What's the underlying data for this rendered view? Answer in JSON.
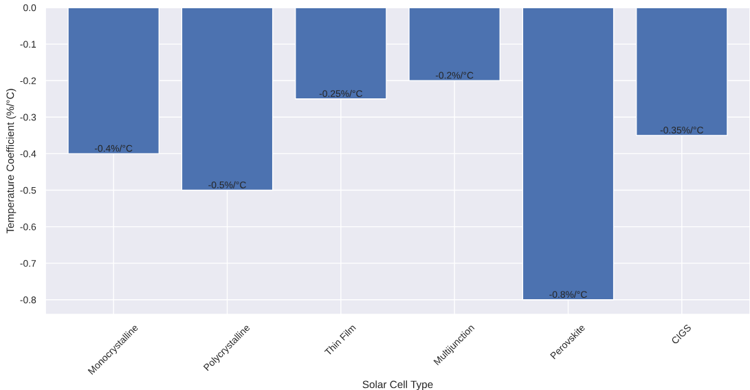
{
  "chart_data": {
    "type": "bar",
    "xlabel": "Solar Cell Type",
    "ylabel": "Temperature Coefficient (%/°C)",
    "categories": [
      "Monocrystalline",
      "Polycrystalline",
      "Thin Film",
      "Multijunction",
      "Perovskite",
      "CIGS"
    ],
    "values": [
      -0.4,
      -0.5,
      -0.25,
      -0.2,
      -0.8,
      -0.35
    ],
    "value_labels": [
      "-0.4%/°C",
      "-0.5%/°C",
      "-0.25%/°C",
      "-0.2%/°C",
      "-0.8%/°C",
      "-0.35%/°C"
    ],
    "color": "#4c72b0",
    "ylim": [
      -0.84,
      0.0
    ],
    "yticks": [
      {
        "value": 0,
        "label": "0.0"
      },
      -0.1,
      -0.2,
      -0.3,
      -0.4,
      -0.5,
      -0.6,
      -0.7,
      -0.8
    ],
    "grid": true
  }
}
